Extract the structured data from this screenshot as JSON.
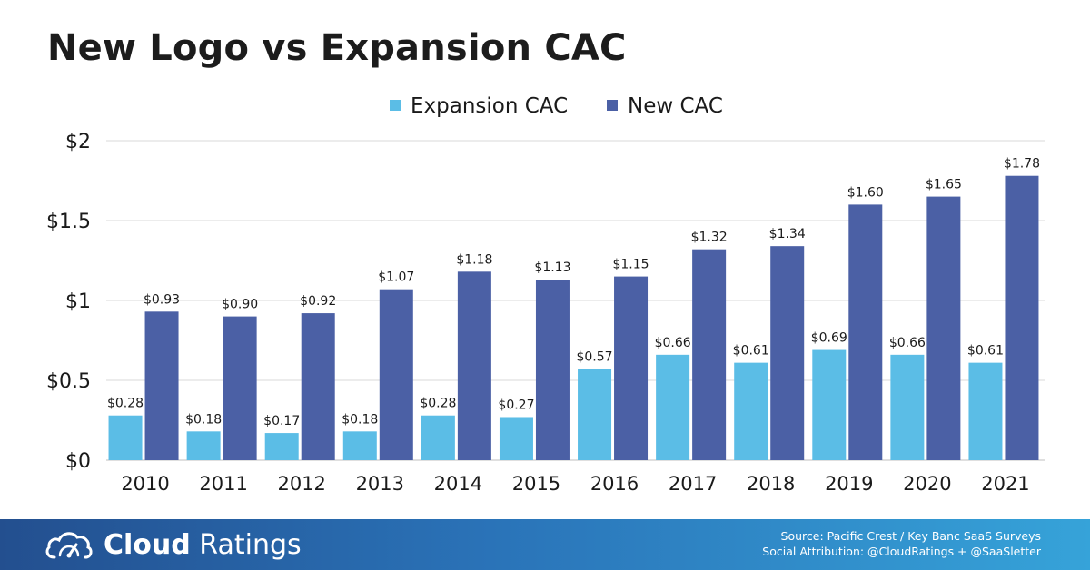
{
  "title": "New Logo vs Expansion CAC",
  "chart_data": {
    "type": "bar",
    "title": "New Logo vs Expansion CAC",
    "xlabel": "",
    "ylabel": "",
    "ylim": [
      0,
      2
    ],
    "y_ticks": [
      0,
      0.5,
      1,
      1.5,
      2
    ],
    "y_tick_labels": [
      "$0",
      "$0.5",
      "$1",
      "$1.5",
      "$2"
    ],
    "grid": true,
    "legend_position": "top-center",
    "categories": [
      "2010",
      "2011",
      "2012",
      "2013",
      "2014",
      "2015",
      "2016",
      "2017",
      "2018",
      "2019",
      "2020",
      "2021"
    ],
    "series": [
      {
        "name": "Expansion CAC",
        "color": "#5bbde6",
        "values": [
          0.28,
          0.18,
          0.17,
          0.18,
          0.28,
          0.27,
          0.57,
          0.66,
          0.61,
          0.69,
          0.66,
          0.61
        ],
        "labels": [
          "$0.28",
          "$0.18",
          "$0.17",
          "$0.18",
          "$0.28",
          "$0.27",
          "$0.57",
          "$0.66",
          "$0.61",
          "$0.69",
          "$0.66",
          "$0.61"
        ]
      },
      {
        "name": "New CAC",
        "color": "#4b60a5",
        "values": [
          0.93,
          0.9,
          0.92,
          1.07,
          1.18,
          1.13,
          1.15,
          1.32,
          1.34,
          1.6,
          1.65,
          1.78
        ],
        "labels": [
          "$0.93",
          "$0.90",
          "$0.92",
          "$1.07",
          "$1.18",
          "$1.13",
          "$1.15",
          "$1.32",
          "$1.34",
          "$1.60",
          "$1.65",
          "$1.78"
        ]
      }
    ]
  },
  "footer": {
    "brand_bold": "Cloud",
    "brand_light": "Ratings",
    "brand_icon": "cloud-gauge-icon",
    "source_line1": "Source: Pacific Crest / Key Banc SaaS Surveys",
    "source_line2": "Social Attribution: @CloudRatings + @SaaSletter"
  }
}
